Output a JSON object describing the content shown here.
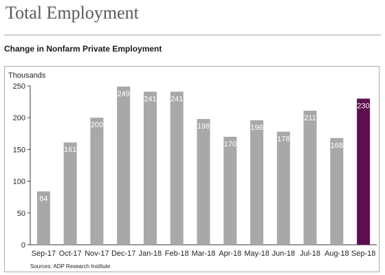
{
  "page": {
    "title": "Total Employment",
    "subtitle": "Change in Nonfarm Private Employment",
    "source": "Sources: ADP Research Institute"
  },
  "chart_data": {
    "type": "bar",
    "ylabel": "Thousands",
    "xlabel": "",
    "ylim": [
      0,
      250
    ],
    "yticks": [
      0,
      50,
      100,
      150,
      200,
      250
    ],
    "grid": false,
    "categories": [
      "Sep-17",
      "Oct-17",
      "Nov-17",
      "Dec-17",
      "Jan-18",
      "Feb-18",
      "Mar-18",
      "Apr-18",
      "May-18",
      "Jun-18",
      "Jul-18",
      "Aug-18",
      "Sep-18"
    ],
    "values": [
      84,
      161,
      200,
      249,
      241,
      241,
      198,
      170,
      196,
      178,
      211,
      168,
      230
    ],
    "value_labels": [
      "84",
      "161",
      "200",
      "249",
      "241",
      "241",
      "198",
      "170",
      "196",
      "178",
      "211",
      "168",
      "230"
    ],
    "colors": {
      "bar": "#a8a8a8",
      "highlight_bar": "#5c0f4e",
      "label": "#ffffff",
      "axis": "#333333",
      "text": "#222222"
    },
    "highlight_index": 12
  }
}
